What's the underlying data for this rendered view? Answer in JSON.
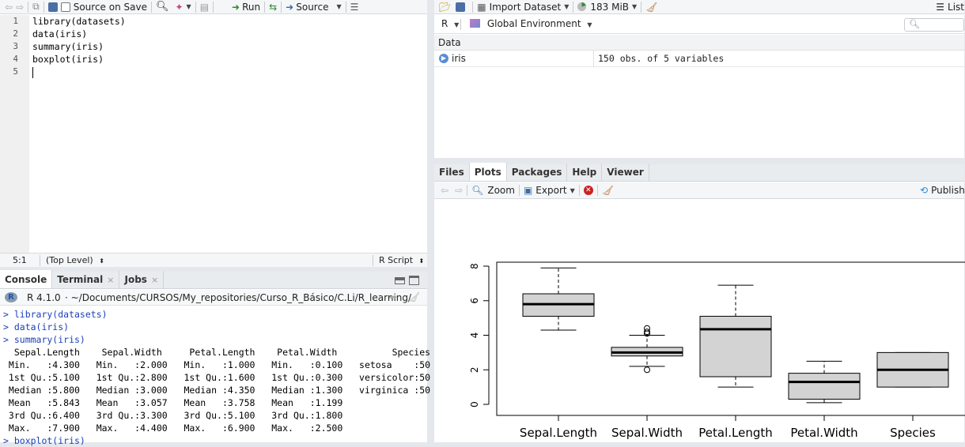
{
  "editor": {
    "toolbar": {
      "source_on_save": "Source on Save",
      "run": "Run",
      "source": "Source"
    },
    "lines": [
      "1",
      "2",
      "3",
      "4",
      "5"
    ],
    "code": [
      "library(datasets)",
      "data(iris)",
      "summary(iris)",
      "boxplot(iris)",
      ""
    ],
    "status": {
      "position": "5:1",
      "scope": "(Top Level)",
      "filetype": "R Script"
    }
  },
  "console": {
    "tabs": [
      {
        "label": "Console"
      },
      {
        "label": "Terminal",
        "close": "×"
      },
      {
        "label": "Jobs",
        "close": "×"
      }
    ],
    "r_version": "R 4.1.0",
    "path": "· ~/Documents/CURSOS/My_repositories/Curso_R_Básico/C.Li/R_learning/",
    "lines": [
      {
        "type": "cmd",
        "text": "> library(datasets)"
      },
      {
        "type": "cmd",
        "text": "> data(iris)"
      },
      {
        "type": "cmd",
        "text": "> summary(iris)"
      },
      {
        "type": "out",
        "text": "  Sepal.Length    Sepal.Width     Petal.Length    Petal.Width          Species  "
      },
      {
        "type": "out",
        "text": " Min.   :4.300   Min.   :2.000   Min.   :1.000   Min.   :0.100   setosa    :50  "
      },
      {
        "type": "out",
        "text": " 1st Qu.:5.100   1st Qu.:2.800   1st Qu.:1.600   1st Qu.:0.300   versicolor:50  "
      },
      {
        "type": "out",
        "text": " Median :5.800   Median :3.000   Median :4.350   Median :1.300   virginica :50  "
      },
      {
        "type": "out",
        "text": " Mean   :5.843   Mean   :3.057   Mean   :3.758   Mean   :1.199                  "
      },
      {
        "type": "out",
        "text": " 3rd Qu.:6.400   3rd Qu.:3.300   3rd Qu.:5.100   3rd Qu.:1.800                  "
      },
      {
        "type": "out",
        "text": " Max.   :7.900   Max.   :4.400   Max.   :6.900   Max.   :2.500                  "
      },
      {
        "type": "cmd",
        "text": "> boxplot(iris)"
      }
    ]
  },
  "environment": {
    "toolbar": {
      "import_dataset": "Import Dataset",
      "memory": "183 MiB",
      "list": "List"
    },
    "language": "R",
    "env": "Global Environment",
    "section": "Data",
    "rows": [
      {
        "name": "iris",
        "value": "150 obs. of 5 variables"
      }
    ]
  },
  "files": {
    "tabs": [
      {
        "label": "Files"
      },
      {
        "label": "Plots"
      },
      {
        "label": "Packages"
      },
      {
        "label": "Help"
      },
      {
        "label": "Viewer"
      }
    ],
    "toolbar": {
      "zoom": "Zoom",
      "export": "Export",
      "publish": "Publish"
    }
  },
  "chart_data": {
    "type": "boxplot",
    "categories": [
      "Sepal.Length",
      "Sepal.Width",
      "Petal.Length",
      "Petal.Width",
      "Species"
    ],
    "boxes": [
      {
        "whisker_low": 4.3,
        "q1": 5.1,
        "median": 5.8,
        "q3": 6.4,
        "whisker_high": 7.9,
        "outliers": []
      },
      {
        "whisker_low": 2.2,
        "q1": 2.8,
        "median": 3.0,
        "q3": 3.3,
        "whisker_high": 4.0,
        "outliers": [
          2.0,
          4.1,
          4.2,
          4.4
        ]
      },
      {
        "whisker_low": 1.0,
        "q1": 1.6,
        "median": 4.35,
        "q3": 5.1,
        "whisker_high": 6.9,
        "outliers": []
      },
      {
        "whisker_low": 0.1,
        "q1": 0.3,
        "median": 1.3,
        "q3": 1.8,
        "whisker_high": 2.5,
        "outliers": []
      },
      {
        "whisker_low": 1.0,
        "q1": 1.0,
        "median": 2.0,
        "q3": 3.0,
        "whisker_high": 3.0,
        "outliers": []
      }
    ],
    "yticks": [
      "0",
      "2",
      "4",
      "6",
      "8"
    ],
    "ylim": [
      0,
      8
    ],
    "box_fill": "#d3d3d3",
    "grid": false
  }
}
